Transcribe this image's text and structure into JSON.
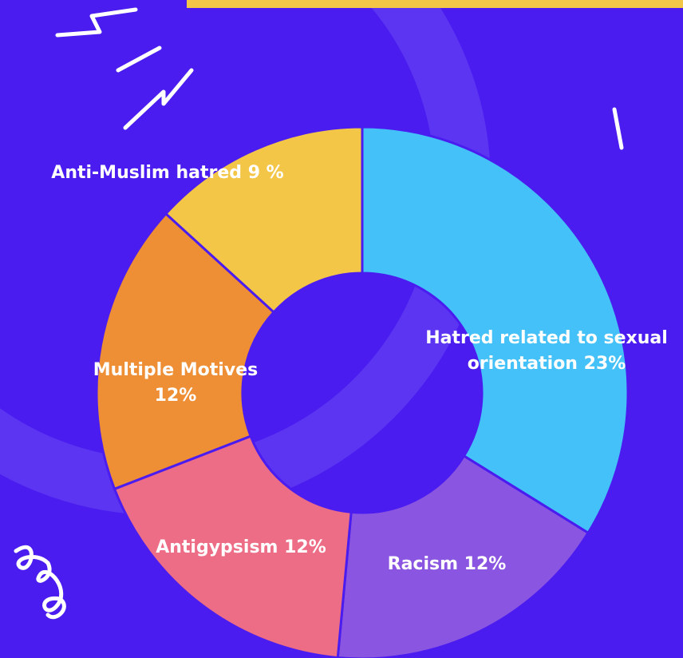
{
  "chart_data": {
    "type": "donut",
    "labels": [
      [
        "Hatred related to sexual",
        "orientation 23%"
      ],
      [
        "Racism 12%"
      ],
      [
        "Antigypsism 12%"
      ],
      [
        "Multiple Motives",
        "12%"
      ],
      [
        "Anti-Muslim hatred 9 %"
      ]
    ],
    "values": [
      23,
      12,
      12,
      12,
      9
    ],
    "colors": [
      "#44c1f8",
      "#8a55e0",
      "#ec6d85",
      "#ee8e35",
      "#f4c647"
    ]
  }
}
